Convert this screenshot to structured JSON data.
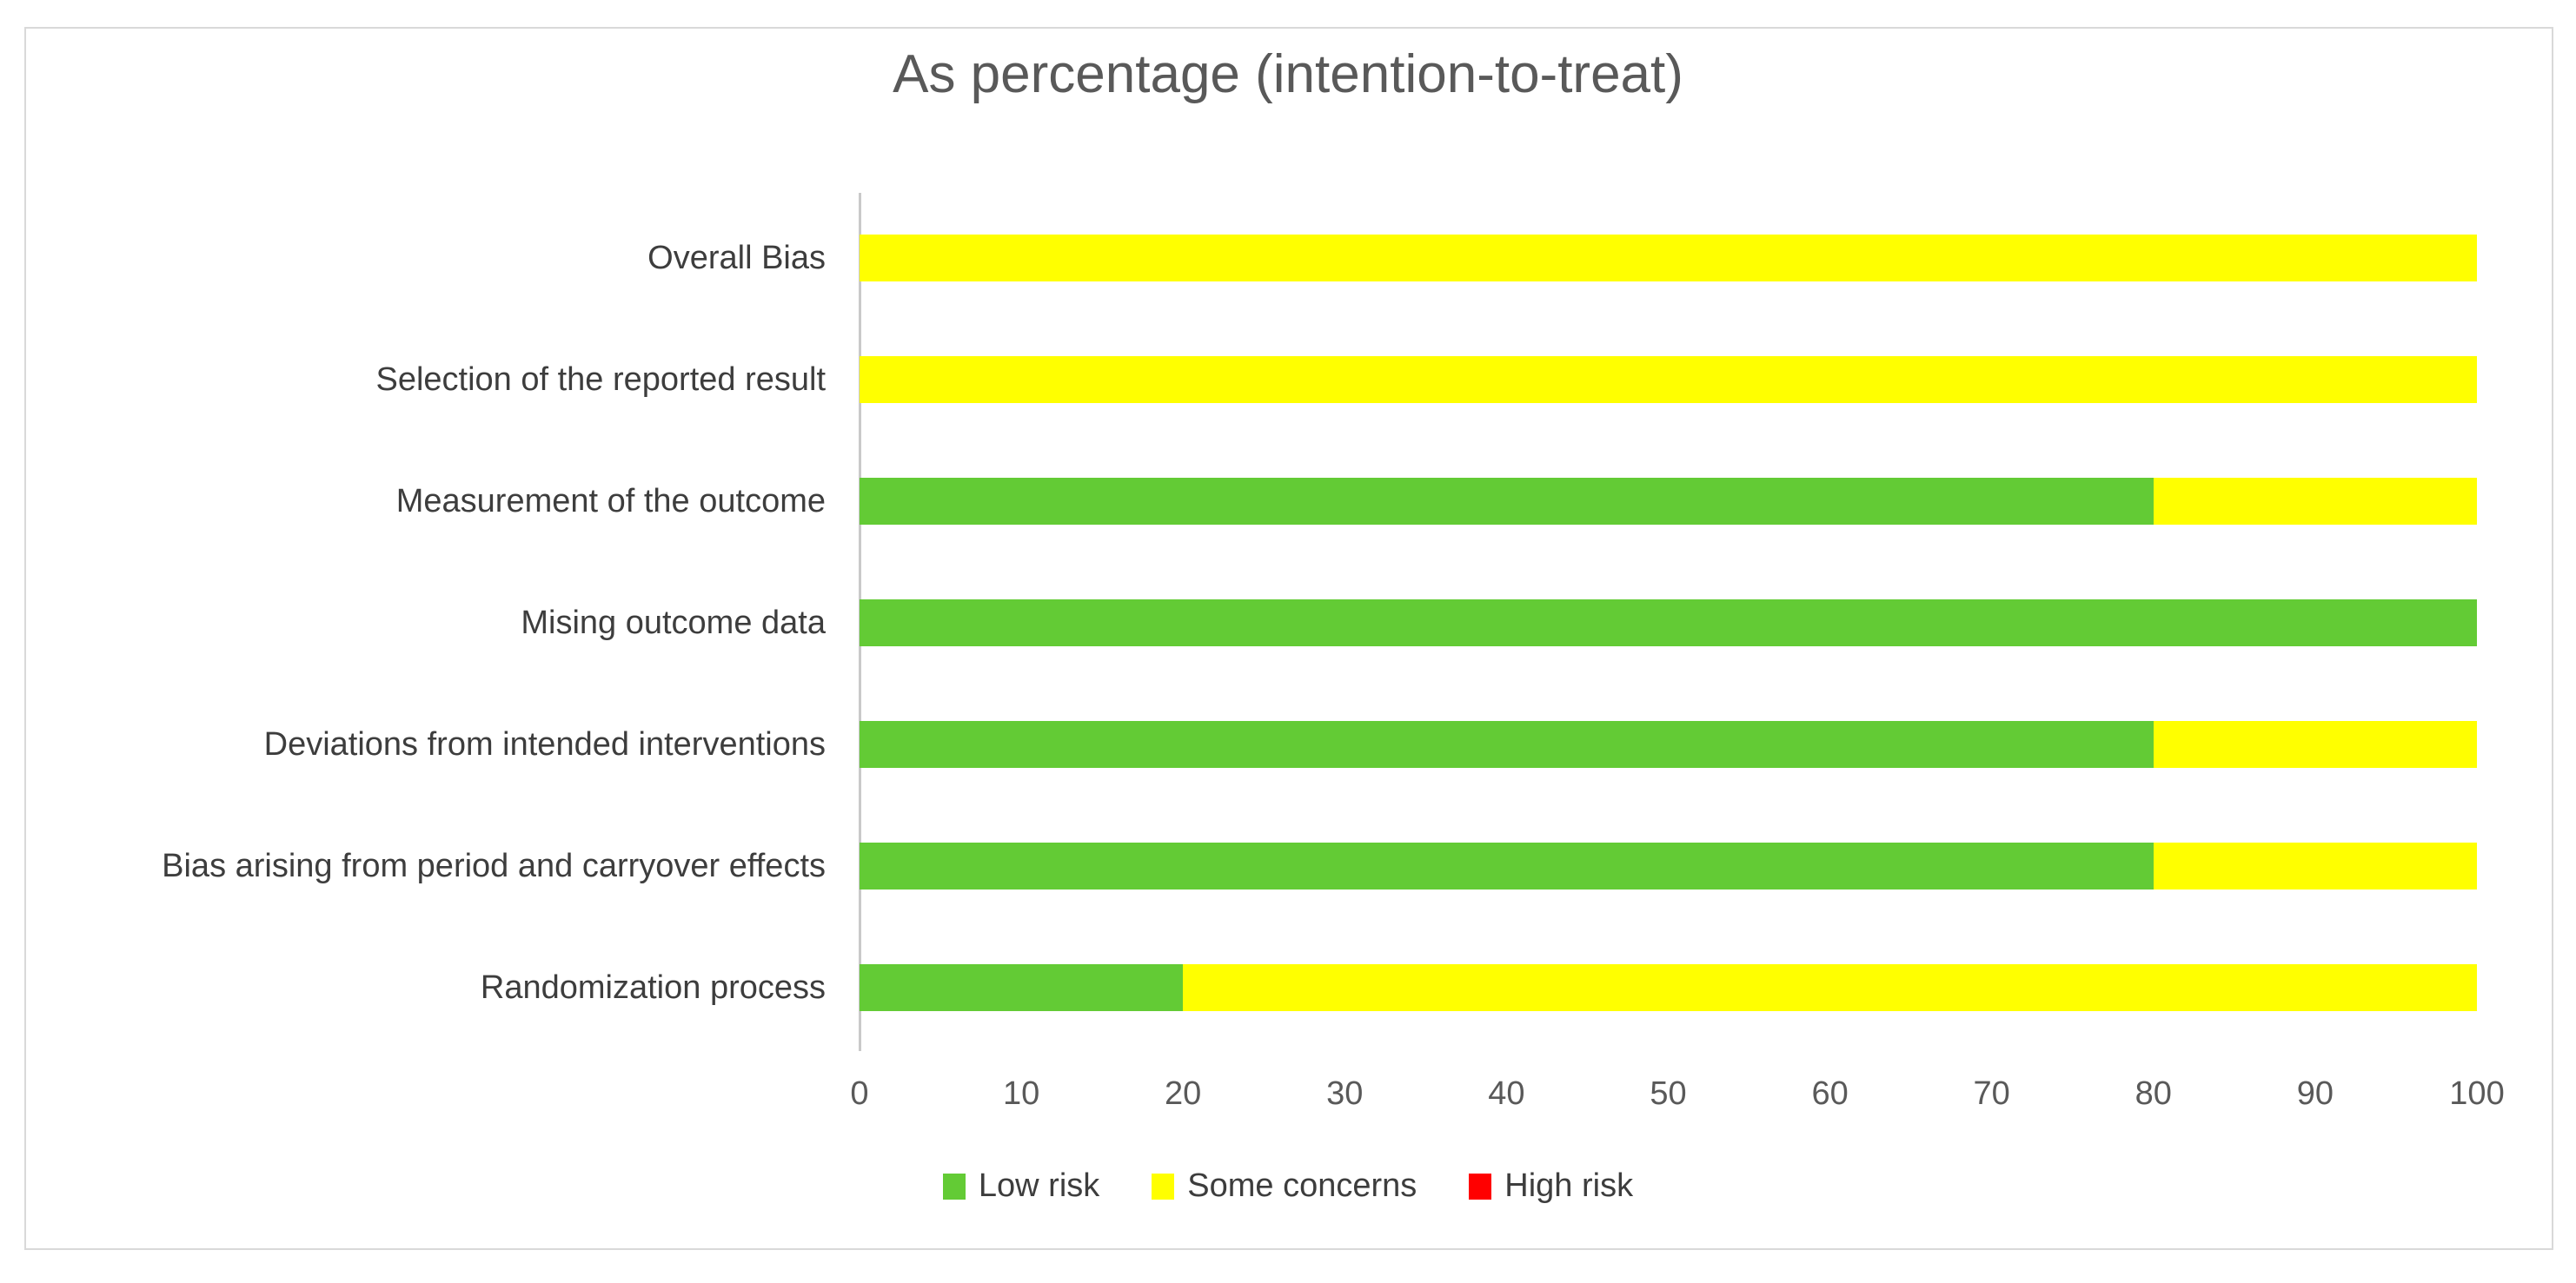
{
  "title": "As percentage (intention-to-treat)",
  "chart_data": {
    "type": "bar",
    "orientation": "horizontal",
    "stacked": true,
    "title": "As percentage (intention-to-treat)",
    "categories": [
      "Overall Bias",
      "Selection of the reported result",
      "Measurement of the outcome",
      "Mising outcome data",
      "Deviations from intended interventions",
      "Bias arising from period and carryover effects",
      "Randomization process"
    ],
    "series": [
      {
        "name": "Low risk",
        "color": "#63CB35",
        "values": [
          0,
          0,
          80,
          100,
          80,
          80,
          20
        ]
      },
      {
        "name": "Some concerns",
        "color": "#FFFF00",
        "values": [
          100,
          100,
          20,
          0,
          20,
          20,
          80
        ]
      },
      {
        "name": "High risk",
        "color": "#FF0000",
        "values": [
          0,
          0,
          0,
          0,
          0,
          0,
          0
        ]
      }
    ],
    "xlabel": "",
    "ylabel": "",
    "xlim": [
      0,
      100
    ],
    "xticks": [
      0,
      10,
      20,
      30,
      40,
      50,
      60,
      70,
      80,
      90,
      100
    ],
    "grid": false,
    "legend_position": "bottom"
  },
  "colors": {
    "low_risk": "#63CB35",
    "some_concerns": "#FFFF00",
    "high_risk": "#FF0000",
    "title_text": "#595959",
    "axis_text": "#595959",
    "category_text": "#3D3D3D",
    "axis_line": "#C9C9C9",
    "frame_border": "#D9D9D9"
  }
}
